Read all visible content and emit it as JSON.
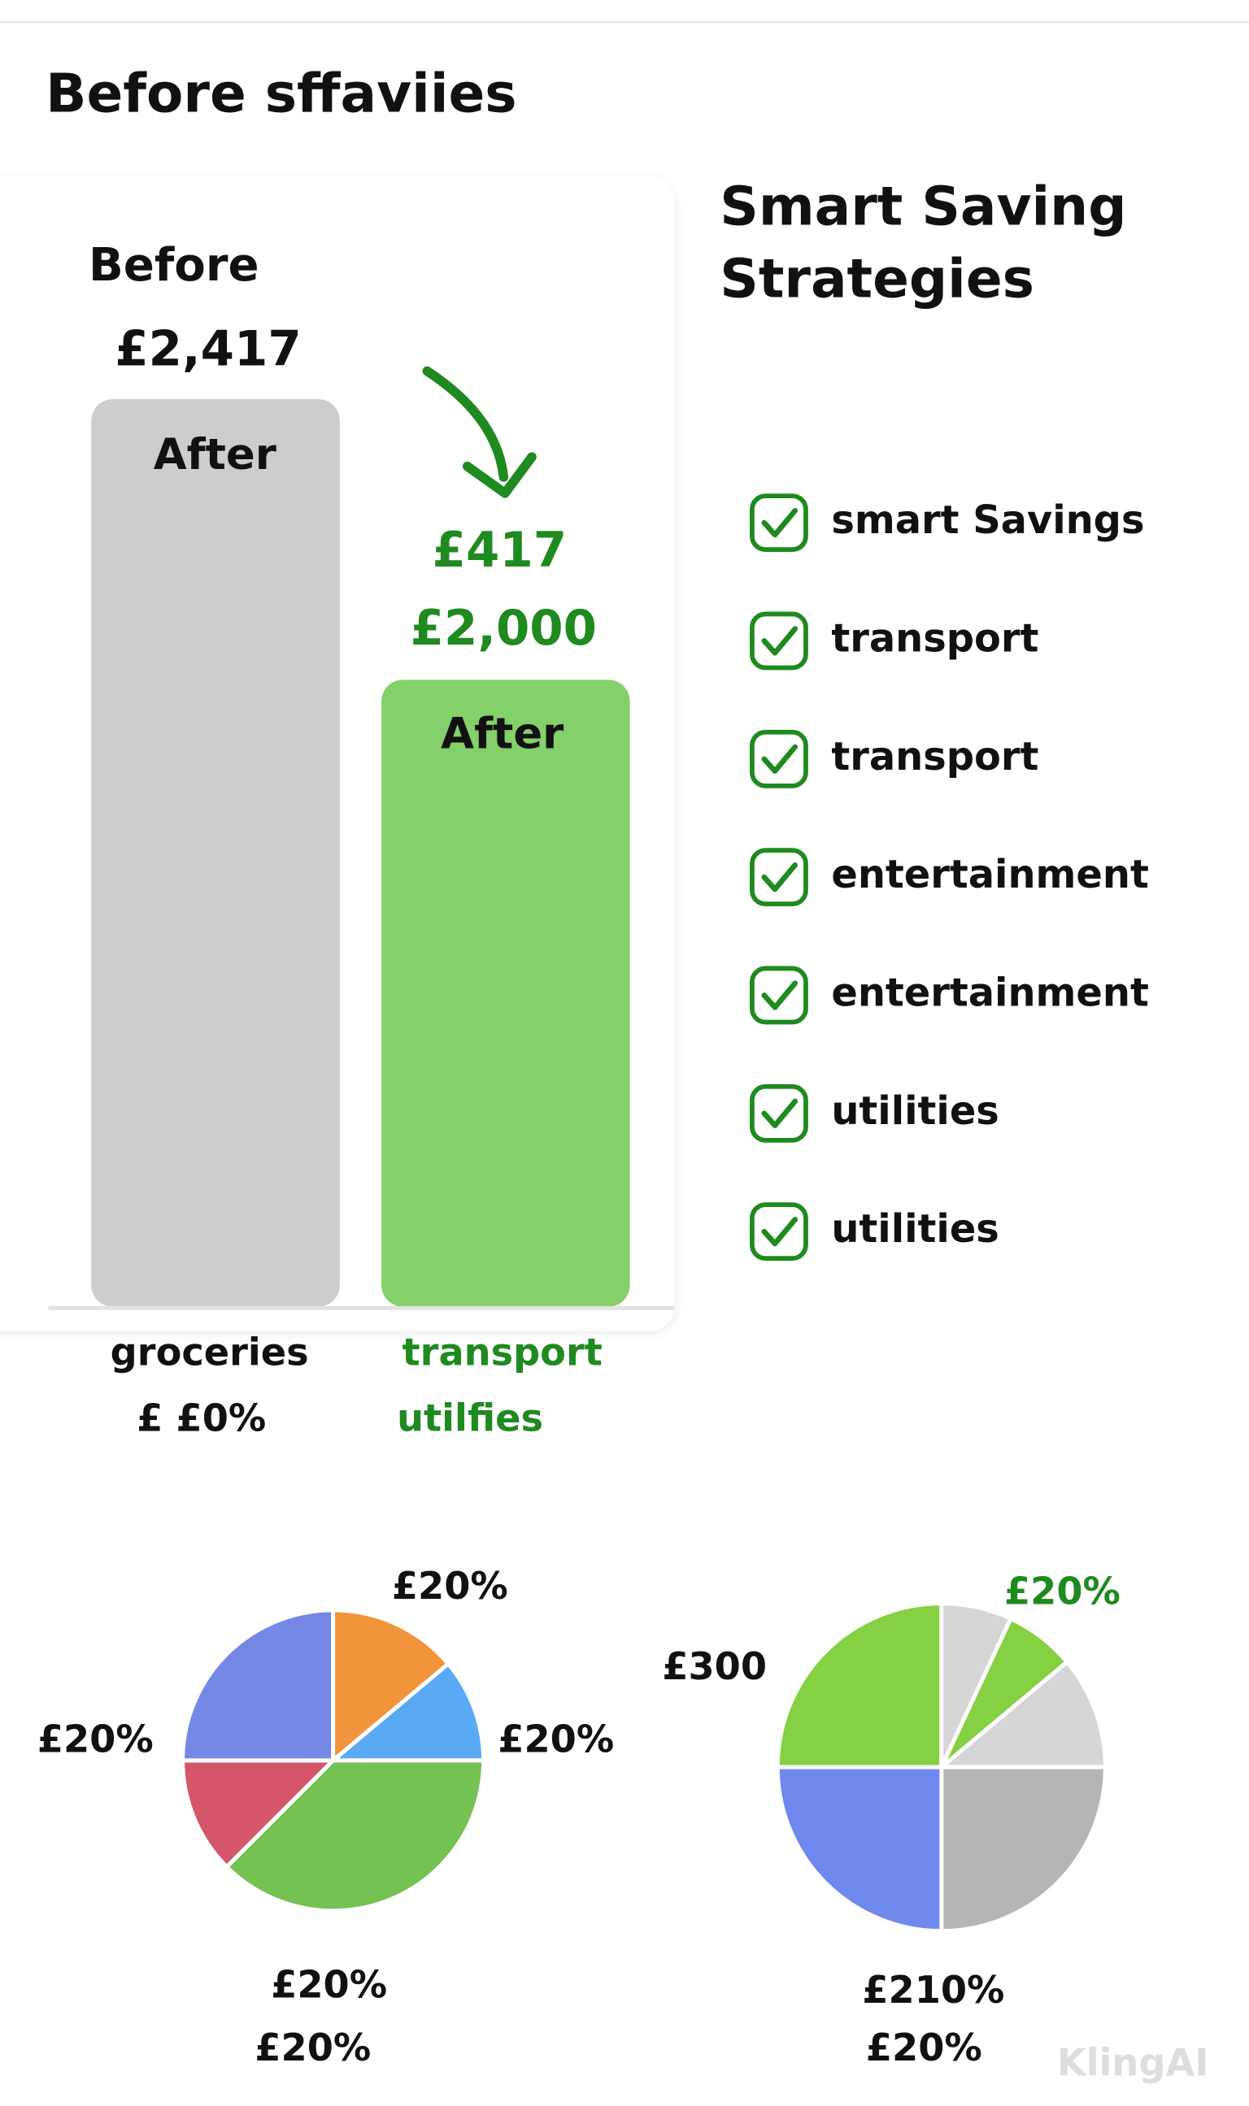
{
  "header": {
    "title": "Before sffaviies"
  },
  "bar_panel": {
    "before_label": "Before",
    "before_amount": "£2,417",
    "before_bar_label": "After",
    "saving_amount": "£417",
    "after_amount": "£2,000",
    "after_bar_label": "After",
    "left_category": "groceries",
    "left_sub": "£ £0%",
    "right_category": "transport",
    "right_sub": "utilfies"
  },
  "strategies": {
    "title_lines": [
      "Smart Saving",
      "Strategies"
    ],
    "items": [
      "smart Savings",
      "transport",
      "transport",
      "entertainment",
      "entertainment",
      "utilities",
      "utilities"
    ]
  },
  "pie_left": {
    "labels": [
      "£20%",
      "£20%",
      "£20%",
      "£20%",
      "£20%"
    ]
  },
  "pie_right": {
    "labels": [
      "£20%",
      "£300",
      "£210%",
      "£20%"
    ]
  },
  "watermark": "KlingAI"
}
